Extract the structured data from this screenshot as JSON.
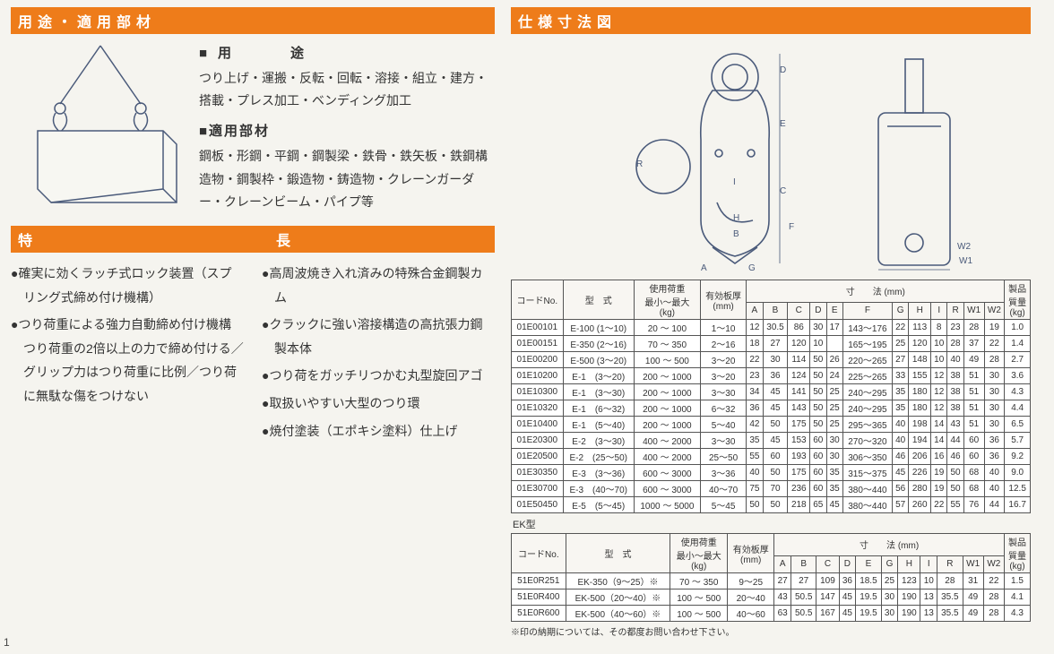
{
  "colors": {
    "accent": "#ee7c1a",
    "text": "#333333",
    "bg": "#f5f4ef",
    "border": "#555555"
  },
  "left": {
    "usage_header": "用途・適用部材",
    "usage_subhead": "■用　　途",
    "usage_body": "つり上げ・運搬・反転・回転・溶接・組立・建方・搭載・プレス加工・ベンディング加工",
    "material_subhead": "■適用部材",
    "material_body": "鋼板・形鋼・平鋼・鋼製梁・鉄骨・鉄矢板・鉄鋼構造物・鋼製枠・鍛造物・鋳造物・クレーンガーダー・クレーンビーム・パイプ等",
    "features_header": "特　　　　　長",
    "features_left": [
      "●確実に効くラッチ式ロック装置（スプリング式締め付け機構）",
      "●つり荷重による強力自動締め付け機構　つり荷重の2倍以上の力で締め付ける／グリップ力はつり荷重に比例／つり荷に無駄な傷をつけない"
    ],
    "features_right": [
      "●高周波焼き入れ済みの特殊合金鋼製カム",
      "●クラックに強い溶接構造の高抗張力鋼製本体",
      "●つり荷をガッチリつかむ丸型旋回アゴ",
      "●取扱いやすい大型のつり環",
      "●焼付塗装（エポキシ塗料）仕上げ"
    ]
  },
  "right": {
    "spec_header": "仕様寸法図",
    "table1": {
      "head_code": "コードNo.",
      "head_model": "型　式",
      "head_load": "使用荷重\n最小〜最大\n(kg)",
      "head_thick": "有効板厚\n(mm)",
      "head_dims": "寸　　法 (mm)",
      "head_weight": "製品\n質量\n(kg)",
      "dim_cols": [
        "A",
        "B",
        "C",
        "D",
        "E",
        "F",
        "G",
        "H",
        "I",
        "R",
        "W1",
        "W2"
      ],
      "rows": [
        [
          "01E00101",
          "E-100 (1〜10)",
          "20 〜 100",
          "1〜10",
          "12",
          "30.5",
          "86",
          "30",
          "17",
          "143〜176",
          "22",
          "113",
          "8",
          "23",
          "28",
          "19",
          "1.0"
        ],
        [
          "01E00151",
          "E-350 (2〜16)",
          "70 〜 350",
          "2〜16",
          "18",
          "27",
          "120",
          "10",
          "",
          "165〜195",
          "25",
          "120",
          "10",
          "28",
          "37",
          "22",
          "1.4"
        ],
        [
          "01E00200",
          "E-500 (3〜20)",
          "100 〜 500",
          "3〜20",
          "22",
          "30",
          "114",
          "50",
          "26",
          "220〜265",
          "27",
          "148",
          "10",
          "40",
          "49",
          "28",
          "2.7"
        ],
        [
          "01E10200",
          "E-1　(3〜20)",
          "200 〜 1000",
          "3〜20",
          "23",
          "36",
          "124",
          "50",
          "24",
          "225〜265",
          "33",
          "155",
          "12",
          "38",
          "51",
          "30",
          "3.6"
        ],
        [
          "01E10300",
          "E-1　(3〜30)",
          "200 〜 1000",
          "3〜30",
          "34",
          "45",
          "141",
          "50",
          "25",
          "240〜295",
          "35",
          "180",
          "12",
          "38",
          "51",
          "30",
          "4.3"
        ],
        [
          "01E10320",
          "E-1　(6〜32)",
          "200 〜 1000",
          "6〜32",
          "36",
          "45",
          "143",
          "50",
          "25",
          "240〜295",
          "35",
          "180",
          "12",
          "38",
          "51",
          "30",
          "4.4"
        ],
        [
          "01E10400",
          "E-1　(5〜40)",
          "200 〜 1000",
          "5〜40",
          "42",
          "50",
          "175",
          "50",
          "25",
          "295〜365",
          "40",
          "198",
          "14",
          "43",
          "51",
          "30",
          "6.5"
        ],
        [
          "01E20300",
          "E-2　(3〜30)",
          "400 〜 2000",
          "3〜30",
          "35",
          "45",
          "153",
          "60",
          "30",
          "270〜320",
          "40",
          "194",
          "14",
          "44",
          "60",
          "36",
          "5.7"
        ],
        [
          "01E20500",
          "E-2　(25〜50)",
          "400 〜 2000",
          "25〜50",
          "55",
          "60",
          "193",
          "60",
          "30",
          "306〜350",
          "46",
          "206",
          "16",
          "46",
          "60",
          "36",
          "9.2"
        ],
        [
          "01E30350",
          "E-3　(3〜36)",
          "600 〜 3000",
          "3〜36",
          "40",
          "50",
          "175",
          "60",
          "35",
          "315〜375",
          "45",
          "226",
          "19",
          "50",
          "68",
          "40",
          "9.0"
        ],
        [
          "01E30700",
          "E-3　(40〜70)",
          "600 〜 3000",
          "40〜70",
          "75",
          "70",
          "236",
          "60",
          "35",
          "380〜440",
          "56",
          "280",
          "19",
          "50",
          "68",
          "40",
          "12.5"
        ],
        [
          "01E50450",
          "E-5　(5〜45)",
          "1000 〜 5000",
          "5〜45",
          "50",
          "50",
          "218",
          "65",
          "45",
          "380〜440",
          "57",
          "260",
          "22",
          "55",
          "76",
          "44",
          "16.7"
        ]
      ]
    },
    "table2_label": "EK型",
    "table2": {
      "rows": [
        [
          "51E0R251",
          "EK-350（9〜25）※",
          "70 〜 350",
          "9〜25",
          "27",
          "27",
          "109",
          "36",
          "18.5",
          "25",
          "123",
          "10",
          "28",
          "31",
          "22",
          "1.5"
        ],
        [
          "51E0R400",
          "EK-500（20〜40）※",
          "100 〜 500",
          "20〜40",
          "43",
          "50.5",
          "147",
          "45",
          "19.5",
          "30",
          "190",
          "13",
          "35.5",
          "49",
          "28",
          "4.1"
        ],
        [
          "51E0R600",
          "EK-500（40〜60）※",
          "100 〜 500",
          "40〜60",
          "63",
          "50.5",
          "167",
          "45",
          "19.5",
          "30",
          "190",
          "13",
          "35.5",
          "49",
          "28",
          "4.3"
        ]
      ],
      "dim_cols": [
        "A",
        "B",
        "C",
        "D",
        "E",
        "G",
        "H",
        "I",
        "R",
        "W1",
        "W2"
      ]
    },
    "footnote": "※印の納期については、その都度お問い合わせ下さい。"
  },
  "page_number": "1"
}
